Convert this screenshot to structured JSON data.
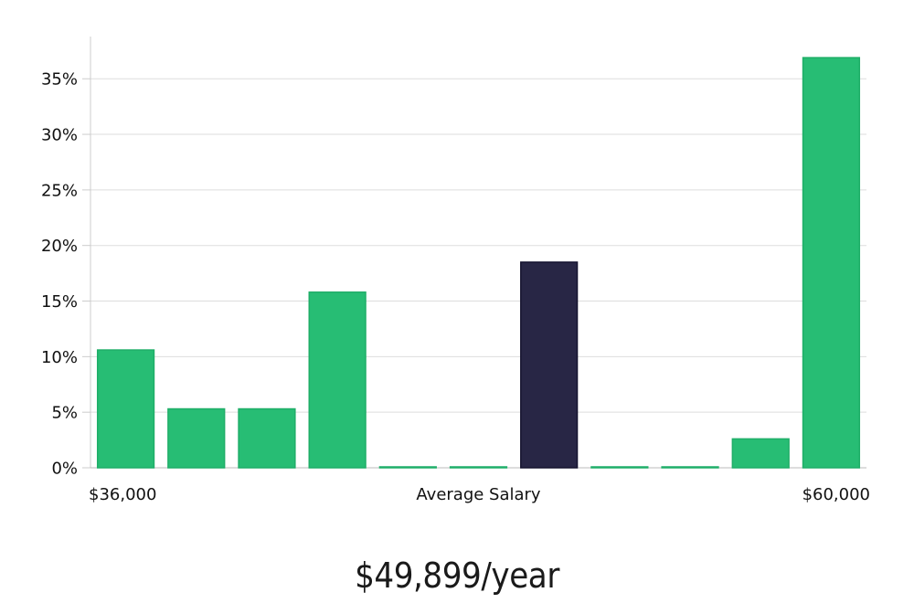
{
  "chart_data": {
    "type": "bar",
    "categories": [
      "1",
      "2",
      "3",
      "4",
      "5",
      "6",
      "7",
      "8",
      "9",
      "10",
      "11"
    ],
    "values": [
      10.6,
      5.3,
      5.3,
      15.8,
      0,
      0,
      18.5,
      0,
      0,
      2.6,
      36.9
    ],
    "highlight_index": 6,
    "y_ticks": [
      "0%",
      "5%",
      "10%",
      "15%",
      "20%",
      "25%",
      "30%",
      "35%"
    ],
    "y_tick_values": [
      0,
      5,
      10,
      15,
      20,
      25,
      30,
      35
    ],
    "ylim": [
      0,
      38.8
    ],
    "x_labels": {
      "left": "$36,000",
      "center": "Average Salary",
      "right": "$60,000"
    },
    "grid": true,
    "colors": {
      "bar": "#27BD74",
      "bar_edge": "#1FAE68",
      "highlight": "#282645",
      "highlight_edge": "#15132F",
      "grid": "#DDDDDD",
      "axis": "#CCCCCC"
    }
  },
  "summary": {
    "label": "$49,899/year"
  }
}
